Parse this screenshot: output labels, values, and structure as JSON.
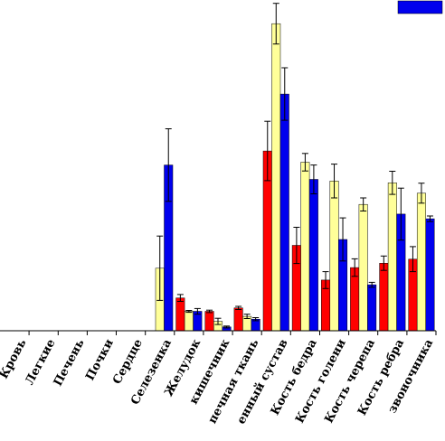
{
  "chart_data": {
    "type": "bar",
    "title": "",
    "xlabel": "",
    "ylabel": "",
    "ylim": [
      0,
      100
    ],
    "categories": [
      "Кровь",
      "Легкие",
      "Печень",
      "Почки",
      "Сердце",
      "Селезенка",
      "Желудок",
      "кишечник",
      "печная ткань",
      "енный сустав",
      "Кость бедра",
      "Кость голени",
      "Кость черепа",
      "Кость ребра",
      "звоночника"
    ],
    "series": [
      {
        "color": "#ff0000",
        "values": [
          0,
          0,
          0,
          0,
          0,
          0,
          10.5,
          6.2,
          7.3,
          57.5,
          27.3,
          16.2,
          20.2,
          21.6,
          22.9
        ],
        "errors": [
          0,
          0,
          0,
          0,
          0,
          0,
          1.1,
          0.4,
          0.5,
          9.5,
          5.8,
          2.7,
          2.8,
          2.3,
          4.0
        ]
      },
      {
        "color": "#ffff99",
        "values": [
          0,
          0,
          0,
          0,
          0,
          20.0,
          6.2,
          3.0,
          4.6,
          98.2,
          53.9,
          47.9,
          40.4,
          47.3,
          44.0
        ],
        "errors": [
          0,
          0,
          0,
          0,
          0,
          10.3,
          0.3,
          1.0,
          0.7,
          6.5,
          2.8,
          5.4,
          2.1,
          3.7,
          3.2
        ]
      },
      {
        "color": "#0000ee",
        "values": [
          0,
          0,
          0,
          0,
          0,
          53.0,
          6.2,
          1.2,
          3.7,
          75.7,
          48.4,
          29.2,
          14.7,
          37.3,
          35.8
        ],
        "errors": [
          0,
          0,
          0,
          0,
          0,
          11.6,
          0.9,
          0.3,
          0.5,
          8.4,
          4.6,
          6.9,
          0.8,
          8.3,
          0.9
        ]
      }
    ],
    "legend": {
      "position": "top-right"
    },
    "grid": false
  }
}
